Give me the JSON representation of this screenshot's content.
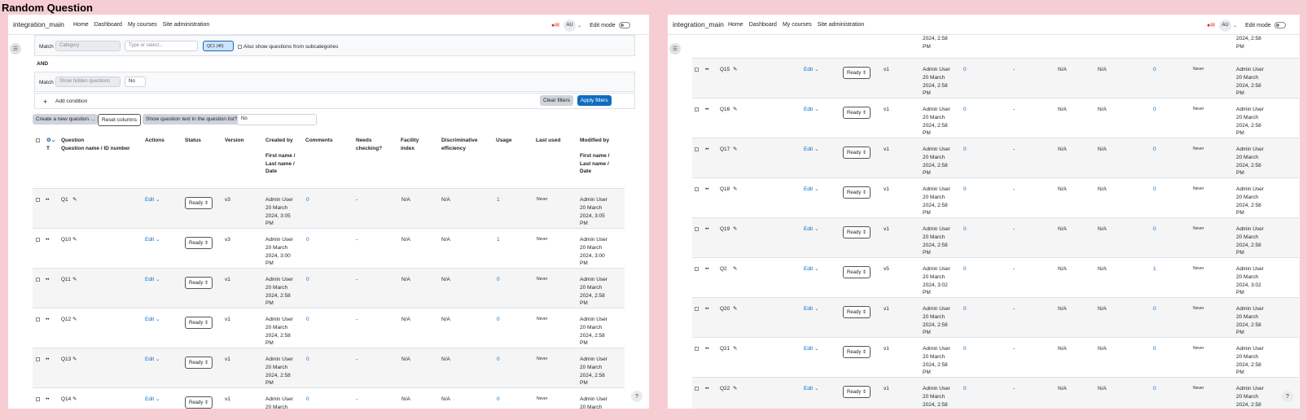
{
  "screen_title": "Random Question",
  "navbar": {
    "site": "integration_main",
    "links": [
      "Home",
      "Dashboard",
      "My courses",
      "Site administration"
    ],
    "avatar": "AU",
    "edit_mode": "Edit mode"
  },
  "filters": {
    "match": "Match",
    "category_placeholder": "Category",
    "type_placeholder": "Type or select...",
    "chip": "QC1 (40)",
    "subcat_label": "Also show questions from subcategories",
    "and": "AND",
    "hidden_placeholder": "Show hidden questions",
    "hidden_value": "No",
    "add_condition": "Add condition",
    "clear": "Clear filters",
    "apply": "Apply filters"
  },
  "actions": {
    "create": "Create a new question ...",
    "reset": "Reset columns",
    "show_text": "Show question text in the question list?",
    "show_text_value": "No"
  },
  "headers": {
    "question": "Question",
    "question_sub": "Question name / ID number",
    "actions": "Actions",
    "status": "Status",
    "version": "Version",
    "created": "Created by",
    "created_sub": "First name / Last name / Date",
    "comments": "Comments",
    "needs": "Needs checking?",
    "facility": "Facility index",
    "disc": "Discriminative efficiency",
    "usage": "Usage",
    "last_used": "Last used",
    "modified": "Modified by",
    "modified_sub": "First name / Last name / Date",
    "sort_arrow": "T"
  },
  "cell": {
    "edit": "Edit",
    "ready": "Ready",
    "na": "N/A",
    "dash": "-",
    "never": "Never",
    "admin": "Admin User"
  },
  "left_rows": [
    {
      "name": "Q1",
      "version": "v3",
      "date": "20 March 2024, 3:05 PM",
      "comments": "0",
      "usage": "1",
      "mdate": "20 March 2024, 3:05 PM"
    },
    {
      "name": "Q10",
      "version": "v3",
      "date": "20 March 2024, 3:00 PM",
      "comments": "0",
      "usage": "1",
      "mdate": "20 March 2024, 3:00 PM"
    },
    {
      "name": "Q11",
      "version": "v1",
      "date": "20 March 2024, 2:58 PM",
      "comments": "0",
      "usage": "0",
      "mdate": "20 March 2024, 2:58 PM"
    },
    {
      "name": "Q12",
      "version": "v1",
      "date": "20 March 2024, 2:58 PM",
      "comments": "0",
      "usage": "0",
      "mdate": "20 March 2024, 2:58 PM"
    },
    {
      "name": "Q13",
      "version": "v1",
      "date": "20 March 2024, 2:58 PM",
      "comments": "0",
      "usage": "0",
      "mdate": "20 March 2024, 2:58 PM"
    },
    {
      "name": "Q14",
      "version": "v1",
      "date": "20 March",
      "comments": "0",
      "usage": "0",
      "mdate": "20 March"
    }
  ],
  "right_top": {
    "date": "2024, 2:58 PM",
    "mdate": "2024, 2:58 PM"
  },
  "right_rows": [
    {
      "name": "Q15",
      "version": "v1",
      "date": "20 March 2024, 2:58 PM",
      "comments": "0",
      "usage": "0",
      "mdate": "20 March 2024, 2:58 PM"
    },
    {
      "name": "Q16",
      "version": "v1",
      "date": "20 March 2024, 2:58 PM",
      "comments": "0",
      "usage": "0",
      "mdate": "20 March 2024, 2:58 PM"
    },
    {
      "name": "Q17",
      "version": "v1",
      "date": "20 March 2024, 2:58 PM",
      "comments": "0",
      "usage": "0",
      "mdate": "20 March 2024, 2:58 PM"
    },
    {
      "name": "Q18",
      "version": "v1",
      "date": "20 March 2024, 2:58 PM",
      "comments": "0",
      "usage": "0",
      "mdate": "20 March 2024, 2:58 PM"
    },
    {
      "name": "Q19",
      "version": "v1",
      "date": "20 March 2024, 2:58 PM",
      "comments": "0",
      "usage": "0",
      "mdate": "20 March 2024, 2:58 PM"
    },
    {
      "name": "Q2",
      "version": "v5",
      "date": "20 March 2024, 3:02 PM",
      "comments": "0",
      "usage": "1",
      "mdate": "20 March 2024, 3:02 PM"
    },
    {
      "name": "Q20",
      "version": "v1",
      "date": "20 March 2024, 2:58 PM",
      "comments": "0",
      "usage": "0",
      "mdate": "20 March 2024, 2:58 PM"
    },
    {
      "name": "Q21",
      "version": "v1",
      "date": "20 March 2024, 2:58 PM",
      "comments": "0",
      "usage": "0",
      "mdate": "20 March 2024, 2:58 PM"
    },
    {
      "name": "Q22",
      "version": "v1",
      "date": "20 March 2024, 2:58",
      "comments": "0",
      "usage": "0",
      "mdate": "20 March 2024, 2:58"
    }
  ]
}
